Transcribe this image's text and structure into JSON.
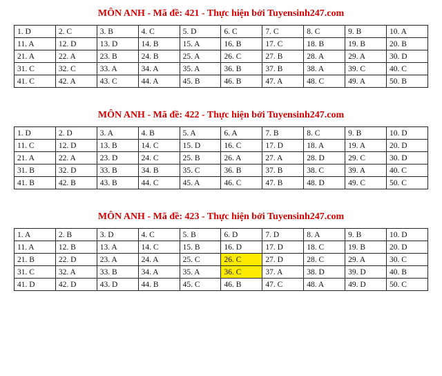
{
  "title_color": "#d60000",
  "highlight_color": "#ffeb00",
  "border_color": "#222222",
  "background_color": "#ffffff",
  "text_color": "#111111",
  "cell_fontsize": 11.5,
  "title_fontsize": 14,
  "columns": 10,
  "rows_per_table": 5,
  "sections": [
    {
      "title": "MÔN ANH - Mã đề: 421 - Thực hiện bởi Tuyensinh247.com",
      "answers": [
        "D",
        "C",
        "B",
        "C",
        "D",
        "C",
        "C",
        "C",
        "B",
        "A",
        "A",
        "D",
        "D",
        "B",
        "A",
        "B",
        "C",
        "B",
        "B",
        "B",
        "A",
        "A",
        "B",
        "B",
        "A",
        "C",
        "B",
        "A",
        "A",
        "D",
        "C",
        "C",
        "A",
        "A",
        "A",
        "B",
        "B",
        "A",
        "C",
        "C",
        "C",
        "A",
        "C",
        "A",
        "B",
        "B",
        "A",
        "C",
        "A",
        "B"
      ],
      "highlights": []
    },
    {
      "title": "MÔN ANH - Mã đề: 422 - Thực hiện bởi Tuyensinh247.com",
      "answers": [
        "D",
        "D",
        "A",
        "B",
        "A",
        "A",
        "B",
        "C",
        "B",
        "D",
        "C",
        "D",
        "B",
        "C",
        "D",
        "C",
        "D",
        "A",
        "A",
        "D",
        "A",
        "A",
        "D",
        "C",
        "B",
        "A",
        "A",
        "D",
        "C",
        "D",
        "B",
        "D",
        "B",
        "B",
        "C",
        "B",
        "B",
        "C",
        "A",
        "C",
        "B",
        "B",
        "B",
        "C",
        "A",
        "C",
        "B",
        "D",
        "C",
        "C"
      ],
      "highlights": []
    },
    {
      "title": "MÔN ANH - Mã đề: 423 - Thực hiện bởi Tuyensinh247.com",
      "answers": [
        "A",
        "B",
        "D",
        "C",
        "B",
        "D",
        "D",
        "A",
        "B",
        "D",
        "A",
        "B",
        "A",
        "C",
        "B",
        "D",
        "D",
        "C",
        "B",
        "D",
        "B",
        "D",
        "A",
        "A",
        "C",
        "C",
        "D",
        "C",
        "A",
        "C",
        "C",
        "A",
        "B",
        "A",
        "A",
        "C",
        "A",
        "D",
        "D",
        "B",
        "D",
        "D",
        "D",
        "B",
        "C",
        "B",
        "C",
        "A",
        "D",
        "C"
      ],
      "highlights": [
        26,
        36
      ]
    }
  ]
}
